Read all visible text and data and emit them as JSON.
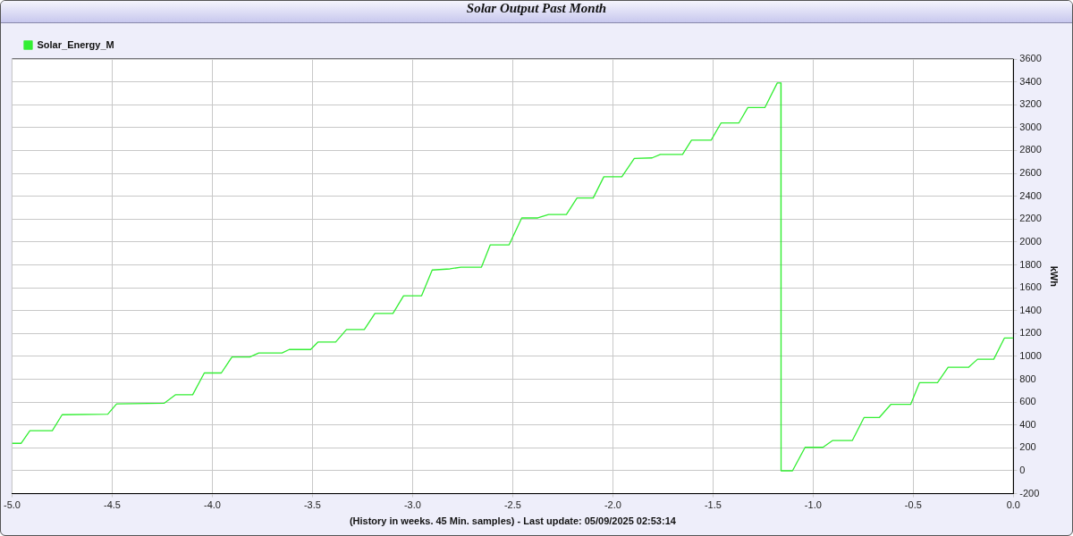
{
  "chart_data": {
    "type": "line",
    "title": "Solar Output Past Month",
    "xlabel": "(History in weeks. 45 Min. samples) - Last update: 05/09/2025 02:53:14",
    "ylabel": "kWh",
    "series": [
      {
        "name": "Solar_Energy_M",
        "color": "#33ee33",
        "x": [
          -5.0,
          -4.955,
          -4.911,
          -4.799,
          -4.75,
          -4.522,
          -4.478,
          -4.241,
          -4.183,
          -4.098,
          -4.04,
          -3.955,
          -3.902,
          -3.813,
          -3.768,
          -3.652,
          -3.616,
          -3.509,
          -3.473,
          -3.384,
          -3.33,
          -3.241,
          -3.188,
          -3.098,
          -3.045,
          -2.955,
          -2.902,
          -2.813,
          -2.759,
          -2.656,
          -2.612,
          -2.518,
          -2.455,
          -2.375,
          -2.321,
          -2.232,
          -2.179,
          -2.098,
          -2.045,
          -1.955,
          -1.893,
          -1.804,
          -1.763,
          -1.652,
          -1.607,
          -1.509,
          -1.46,
          -1.371,
          -1.326,
          -1.241,
          -1.179,
          -1.161,
          -1.16,
          -1.103,
          -1.04,
          -0.951,
          -0.902,
          -0.804,
          -0.746,
          -0.67,
          -0.612,
          -0.513,
          -0.469,
          -0.379,
          -0.326,
          -0.223,
          -0.179,
          -0.098,
          -0.045,
          0.0
        ],
        "values": [
          240,
          240,
          350,
          350,
          490,
          495,
          585,
          590,
          665,
          665,
          855,
          855,
          995,
          995,
          1030,
          1030,
          1060,
          1060,
          1125,
          1125,
          1235,
          1235,
          1375,
          1375,
          1530,
          1530,
          1755,
          1765,
          1780,
          1780,
          1975,
          1975,
          2210,
          2210,
          2240,
          2240,
          2385,
          2385,
          2570,
          2570,
          2730,
          2735,
          2765,
          2765,
          2890,
          2890,
          3040,
          3040,
          3175,
          3175,
          3390,
          3390,
          0,
          0,
          205,
          205,
          265,
          265,
          465,
          465,
          580,
          580,
          770,
          770,
          905,
          905,
          975,
          975,
          1160,
          1160
        ]
      }
    ],
    "xlim": [
      -5.0,
      0.0
    ],
    "xticks": [
      {
        "value": -5,
        "label": "-5.0"
      },
      {
        "value": -4.5,
        "label": "-4.5"
      },
      {
        "value": -4,
        "label": "-4.0"
      },
      {
        "value": -3.5,
        "label": "-3.5"
      },
      {
        "value": -3,
        "label": "-3.0"
      },
      {
        "value": -2.5,
        "label": "-2.5"
      },
      {
        "value": -2,
        "label": "-2.0"
      },
      {
        "value": -1.5,
        "label": "-1.5"
      },
      {
        "value": -1,
        "label": "-1.0"
      },
      {
        "value": -0.5,
        "label": "-0.5"
      },
      {
        "value": 0,
        "label": "0.0"
      }
    ],
    "ylim": [
      -200,
      3600
    ],
    "yticks": [
      -200,
      0,
      200,
      400,
      600,
      800,
      1000,
      1200,
      1400,
      1600,
      1800,
      2000,
      2200,
      2400,
      2600,
      2800,
      3000,
      3200,
      3400,
      3600
    ],
    "grid": true,
    "legend": "top left",
    "marker": "none",
    "line_style": "solid"
  }
}
